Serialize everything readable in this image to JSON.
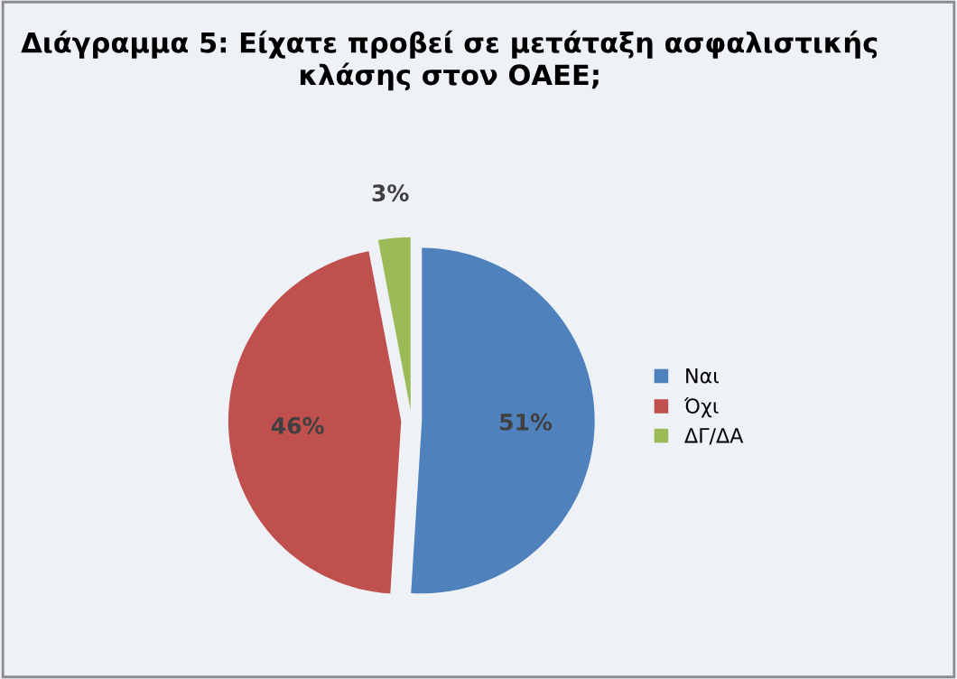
{
  "chart_data": {
    "type": "pie",
    "title": "Διάγραμμα 5: Είχατε προβεί σε μετάταξη ασφαλιστικής κλάσης στον ΟΑΕΕ;",
    "categories": [
      "Ναι",
      "Όχι",
      "ΔΓ/ΔΑ"
    ],
    "values": [
      51,
      46,
      3
    ],
    "colors": [
      "#4f81bd",
      "#c0504d",
      "#9bbb59"
    ],
    "value_labels": [
      "51%",
      "46%",
      "3%"
    ],
    "legend": "right"
  }
}
